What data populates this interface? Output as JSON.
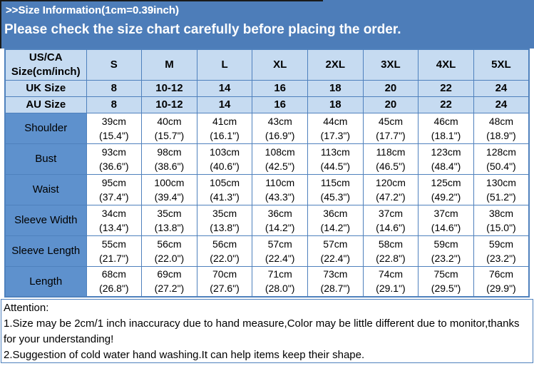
{
  "banner": {
    "title": ">>Size Information(1cm=0.39inch)",
    "subtitle": "Please check the size chart carefully before placing the order."
  },
  "table": {
    "header": {
      "label_line1": "US/CA",
      "label_line2": "Size(cm/inch)",
      "sizes": [
        "S",
        "M",
        "L",
        "XL",
        "2XL",
        "3XL",
        "4XL",
        "5XL"
      ]
    },
    "size_rows": [
      {
        "label": "UK Size",
        "values": [
          "8",
          "10-12",
          "14",
          "16",
          "18",
          "20",
          "22",
          "24"
        ]
      },
      {
        "label": "AU Size",
        "values": [
          "8",
          "10-12",
          "14",
          "16",
          "18",
          "20",
          "22",
          "24"
        ]
      }
    ],
    "measure_rows": [
      {
        "label": "Shoulder",
        "cells": [
          "39cm\n(15.4\")",
          "40cm\n(15.7\")",
          "41cm\n(16.1\")",
          "43cm\n(16.9\")",
          "44cm\n(17.3\")",
          "45cm\n(17.7\")",
          "46cm\n(18.1\")",
          "48cm\n(18.9\")"
        ]
      },
      {
        "label": "Bust",
        "cells": [
          "93cm\n(36.6\")",
          "98cm\n(38.6\")",
          "103cm\n(40.6\")",
          "108cm\n(42.5\")",
          "113cm\n(44.5\")",
          "118cm\n(46.5\")",
          "123cm\n(48.4\")",
          "128cm\n(50.4\")"
        ]
      },
      {
        "label": "Waist",
        "cells": [
          "95cm\n(37.4\")",
          "100cm\n(39.4\")",
          "105cm\n(41.3\")",
          "110cm\n(43.3\")",
          "115cm\n(45.3\")",
          "120cm\n(47.2\")",
          "125cm\n(49.2\")",
          "130cm\n(51.2\")"
        ]
      },
      {
        "label": "Sleeve Width",
        "cells": [
          "34cm\n(13.4\")",
          "35cm\n(13.8\")",
          "35cm\n(13.8\")",
          "36cm\n(14.2\")",
          "36cm\n(14.2\")",
          "37cm\n(14.6\")",
          "37cm\n(14.6\")",
          "38cm\n(15.0\")"
        ]
      },
      {
        "label": "Sleeve Length",
        "cells": [
          "55cm\n(21.7\")",
          "56cm\n(22.0\")",
          "56cm\n(22.0\")",
          "57cm\n(22.4\")",
          "57cm\n(22.4\")",
          "58cm\n(22.8\")",
          "59cm\n(23.2\")",
          "59cm\n(23.2\")"
        ]
      },
      {
        "label": "Length",
        "cells": [
          "68cm\n(26.8\")",
          "69cm\n(27.2\")",
          "70cm\n(27.6\")",
          "71cm\n(28.0\")",
          "73cm\n(28.7\")",
          "74cm\n(29.1\")",
          "75cm\n(29.5\")",
          "76cm\n(29.9\")"
        ]
      }
    ]
  },
  "attention": {
    "title": "Attention:",
    "note1": "1.Size may be 2cm/1 inch inaccuracy due to hand measure,Color may be little different due to monitor,thanks for your understanding!",
    "note2": "2.Suggestion of cold water hand washing.It can help items keep their shape."
  },
  "colors": {
    "banner_blue": "#4d7db9",
    "table_border_blue": "#4f81bd",
    "light_cell_blue": "#c6dbf1",
    "label_cell_blue": "#5e91cd",
    "banner_text": "#ffffff",
    "body_text": "#000000"
  }
}
